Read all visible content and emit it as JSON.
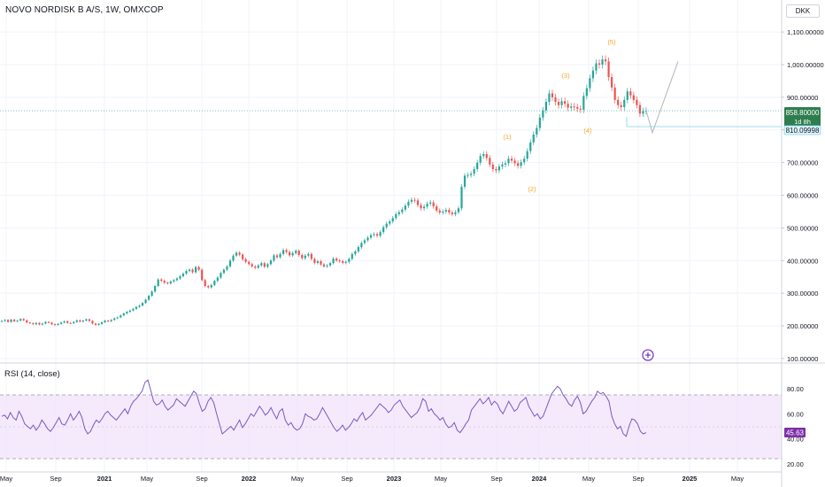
{
  "header": {
    "title": "NOVO NORDISK B A/S, 1W, OMXCOP",
    "currency": "DKK"
  },
  "rsi": {
    "title": "RSI (14, close)",
    "ticks": [
      "80.00",
      "60.00",
      "40.00",
      "20.00"
    ],
    "upper_band": 70,
    "lower_band": 30,
    "current_label": "45.63",
    "current_value": 45.63,
    "values": [
      58,
      59,
      56,
      61,
      57,
      55,
      62,
      58,
      52,
      50,
      48,
      51,
      47,
      50,
      55,
      52,
      48,
      46,
      49,
      53,
      57,
      52,
      51,
      55,
      60,
      55,
      58,
      62,
      57,
      48,
      44,
      46,
      51,
      55,
      53,
      56,
      60,
      62,
      59,
      57,
      55,
      58,
      61,
      64,
      60,
      66,
      70,
      72,
      75,
      78,
      85,
      87,
      79,
      70,
      67,
      68,
      71,
      66,
      63,
      65,
      67,
      72,
      70,
      68,
      66,
      70,
      74,
      78,
      76,
      68,
      62,
      64,
      70,
      73,
      69,
      60,
      52,
      44,
      46,
      48,
      50,
      47,
      51,
      55,
      49,
      52,
      56,
      60,
      58,
      62,
      66,
      63,
      59,
      61,
      65,
      60,
      56,
      62,
      64,
      55,
      51,
      53,
      49,
      47,
      48,
      52,
      60,
      58,
      57,
      55,
      56,
      60,
      65,
      61,
      57,
      53,
      49,
      46,
      48,
      51,
      47,
      49,
      52,
      56,
      54,
      58,
      61,
      55,
      57,
      59,
      62,
      65,
      68,
      66,
      64,
      61,
      63,
      67,
      69,
      71,
      66,
      63,
      60,
      57,
      59,
      61,
      65,
      72,
      70,
      62,
      64,
      60,
      58,
      55,
      57,
      52,
      49,
      50,
      53,
      47,
      45,
      48,
      52,
      55,
      63,
      66,
      69,
      72,
      68,
      70,
      73,
      67,
      70,
      68,
      63,
      60,
      65,
      70,
      66,
      62,
      64,
      69,
      71,
      73,
      66,
      62,
      58,
      60,
      56,
      58,
      64,
      70,
      76,
      79,
      82,
      80,
      75,
      72,
      68,
      66,
      71,
      74,
      69,
      60,
      62,
      66,
      70,
      73,
      78,
      76,
      77,
      74,
      70,
      58,
      52,
      48,
      50,
      44,
      42,
      50,
      56,
      55,
      52,
      46,
      44,
      45
    ]
  },
  "price_axis": {
    "ticks": [
      "1,100.00000",
      "1,000.00000",
      "900.00000",
      "800.00000",
      "700.00000",
      "600.00000",
      "500.00000",
      "400.00000",
      "300.00000",
      "200.00000",
      "100.00000"
    ],
    "price_label": "858.80000",
    "countdown": "1d 8h",
    "target_label": "810.09998"
  },
  "time_axis": {
    "ticks": [
      "May",
      "Sep",
      "2021",
      "May",
      "Sep",
      "2022",
      "May",
      "Sep",
      "2023",
      "May",
      "Sep",
      "2024",
      "May",
      "Sep",
      "2025",
      "May"
    ]
  },
  "chart_data": {
    "type": "candlestick",
    "title": "NOVO NORDISK B A/S, 1W, OMXCOP",
    "xlabel": "",
    "ylabel": "",
    "y_unit": "DKK",
    "ylim": [
      100,
      1100
    ],
    "x_range": [
      "2020-05",
      "2025-07"
    ],
    "close_series": [
      215,
      218,
      212,
      219,
      214,
      216,
      221,
      217,
      210,
      208,
      205,
      209,
      204,
      207,
      212,
      210,
      205,
      203,
      206,
      210,
      214,
      209,
      208,
      212,
      217,
      213,
      216,
      220,
      215,
      207,
      203,
      206,
      211,
      216,
      214,
      218,
      223,
      226,
      232,
      238,
      243,
      247,
      252,
      258,
      262,
      270,
      280,
      292,
      305,
      322,
      342,
      338,
      332,
      330,
      336,
      340,
      345,
      352,
      360,
      368,
      372,
      364,
      380,
      372,
      340,
      322,
      318,
      325,
      338,
      348,
      362,
      372,
      382,
      400,
      415,
      424,
      418,
      404,
      396,
      389,
      382,
      378,
      385,
      392,
      381,
      389,
      400,
      416,
      410,
      420,
      432,
      426,
      416,
      423,
      430,
      417,
      407,
      415,
      420,
      405,
      393,
      398,
      388,
      382,
      385,
      392,
      406,
      400,
      398,
      393,
      396,
      405,
      420,
      428,
      441,
      454,
      462,
      470,
      478,
      481,
      476,
      487,
      502,
      513,
      520,
      530,
      542,
      548,
      556,
      568,
      580,
      586,
      584,
      570,
      560,
      565,
      574,
      578,
      566,
      553,
      547,
      550,
      555,
      547,
      542,
      548,
      560,
      626,
      660,
      662,
      666,
      680,
      700,
      720,
      726,
      714,
      694,
      680,
      676,
      688,
      694,
      698,
      712,
      706,
      698,
      690,
      701,
      712,
      735,
      762,
      786,
      806,
      838,
      860,
      886,
      912,
      900,
      886,
      876,
      888,
      880,
      868,
      872,
      870,
      865,
      862,
      904,
      928,
      958,
      982,
      1004,
      1000,
      1016,
      1010,
      962,
      930,
      892,
      876,
      870,
      892,
      918,
      906,
      892,
      876,
      850,
      858,
      858.8
    ],
    "annotations": {
      "wave_labels": [
        "(1)",
        "(2)",
        "(3)",
        "(4)",
        "(5)"
      ],
      "projection_targets": [
        810.09998,
        1010
      ]
    },
    "last_price": 858.8
  }
}
